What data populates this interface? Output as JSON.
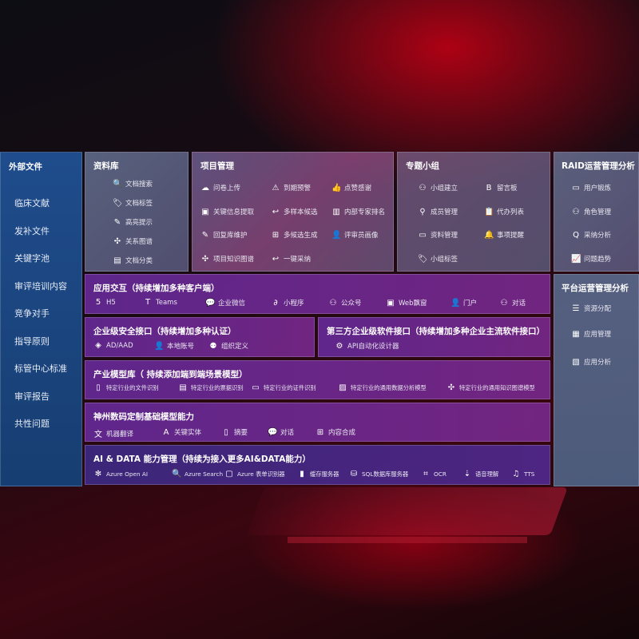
{
  "left": {
    "title": "外部文件",
    "items": [
      "临床文献",
      "发补文件",
      "关键字池",
      "审评培训内容",
      "竞争对手",
      "指导原则",
      "标管中心标准",
      "审评报告",
      "共性问题"
    ]
  },
  "library": {
    "title": "资料库",
    "items": [
      {
        "label": "文档搜索",
        "icon": "doc-search"
      },
      {
        "label": "文档标签",
        "icon": "tag"
      },
      {
        "label": "高亮提示",
        "icon": "pen"
      },
      {
        "label": "关系图谱",
        "icon": "graph"
      },
      {
        "label": "文档分类",
        "icon": "docs"
      }
    ]
  },
  "project": {
    "title": "项目管理",
    "items": [
      {
        "label": "问卷上传",
        "icon": "cloud-upload"
      },
      {
        "label": "到期预警",
        "icon": "alarm"
      },
      {
        "label": "点赞感谢",
        "icon": "thumbs-up"
      },
      {
        "label": "关键信息提取",
        "icon": "window"
      },
      {
        "label": "多样本候选",
        "icon": "reply"
      },
      {
        "label": "内部专家排名",
        "icon": "ranking"
      },
      {
        "label": "回复库维护",
        "icon": "edit"
      },
      {
        "label": "多候选生成",
        "icon": "puzzle"
      },
      {
        "label": "评审员画像",
        "icon": "user"
      },
      {
        "label": "项目知识图谱",
        "icon": "graph"
      },
      {
        "label": "一键采纳",
        "icon": "reply"
      }
    ]
  },
  "group": {
    "title": "专题小组",
    "items": [
      {
        "label": "小组建立",
        "icon": "users"
      },
      {
        "label": "留言板",
        "icon": "bbs"
      },
      {
        "label": "成员管理",
        "icon": "user-add"
      },
      {
        "label": "代办列表",
        "icon": "clipboard"
      },
      {
        "label": "资料管理",
        "icon": "folder"
      },
      {
        "label": "事项提醒",
        "icon": "bell"
      },
      {
        "label": "小组标签",
        "icon": "tag"
      }
    ]
  },
  "raid": {
    "title": "RAID运营管理分析",
    "items": [
      {
        "label": "用户锻炼",
        "icon": "id-card"
      },
      {
        "label": "角色管理",
        "icon": "users"
      },
      {
        "label": "采纳分析",
        "icon": "qa"
      },
      {
        "label": "问题趋势",
        "icon": "trend"
      }
    ]
  },
  "platform": {
    "title": "平台运营管理分析",
    "items": [
      {
        "label": "资源分配",
        "icon": "checklist"
      },
      {
        "label": "应用管理",
        "icon": "apps"
      },
      {
        "label": "应用分析",
        "icon": "analytics"
      }
    ]
  },
  "app": {
    "title": "应用交互（持续增加多种客户端）",
    "items": [
      {
        "label": "H5",
        "icon": "html5"
      },
      {
        "label": "Teams",
        "icon": "teams"
      },
      {
        "label": "企业微信",
        "icon": "wechat-work"
      },
      {
        "label": "小程序",
        "icon": "mini-program"
      },
      {
        "label": "公众号",
        "icon": "users"
      },
      {
        "label": "Web飘窗",
        "icon": "window"
      },
      {
        "label": "门户",
        "icon": "portal"
      },
      {
        "label": "对话",
        "icon": "chat-users"
      }
    ]
  },
  "security": {
    "title": "企业级安全接口（持续增加多种认证）",
    "items": [
      {
        "label": "AD/AAD",
        "icon": "diamond"
      },
      {
        "label": "本地账号",
        "icon": "user"
      },
      {
        "label": "组织定义",
        "icon": "org"
      }
    ]
  },
  "thirdparty": {
    "title": "第三方企业级软件接口（持续增加多种企业主流软件接口）",
    "items": [
      {
        "label": "API自动化设计器",
        "icon": "gear"
      }
    ]
  },
  "industry": {
    "title": "产业模型库（ 持续添加端到端场景模型）",
    "items": [
      {
        "label": "特定行业的文件识别",
        "icon": "doc"
      },
      {
        "label": "特定行业的票据识别",
        "icon": "receipt"
      },
      {
        "label": "特定行业的证件识别",
        "icon": "id-card"
      },
      {
        "label": "特定行业的通用数据分析模型",
        "icon": "chart"
      },
      {
        "label": "特定行业的通用知识图谱模型",
        "icon": "graph"
      }
    ]
  },
  "base": {
    "title": "神州数码定制基础模型能力",
    "items": [
      {
        "label": "机器翻译",
        "icon": "translate"
      },
      {
        "label": "关键实体",
        "icon": "shield-a"
      },
      {
        "label": "摘要",
        "icon": "doc"
      },
      {
        "label": "对话",
        "icon": "chat"
      },
      {
        "label": "内容合成",
        "icon": "puzzle"
      }
    ]
  },
  "ai": {
    "title": "AI & DATA 能力管理（持续为接入更多AI&DATA能力）",
    "items": [
      {
        "label": "Azure Open AI",
        "icon": "openai"
      },
      {
        "label": "Azure Search",
        "icon": "doc-search"
      },
      {
        "label": "Azure 表单识别器",
        "icon": "form"
      },
      {
        "label": "缓存服务器",
        "icon": "cache"
      },
      {
        "label": "SQL数据库服务器",
        "icon": "database"
      },
      {
        "label": "OCR",
        "icon": "ocr"
      },
      {
        "label": "语音理解",
        "icon": "speech"
      },
      {
        "label": "TTS",
        "icon": "tts"
      }
    ]
  }
}
